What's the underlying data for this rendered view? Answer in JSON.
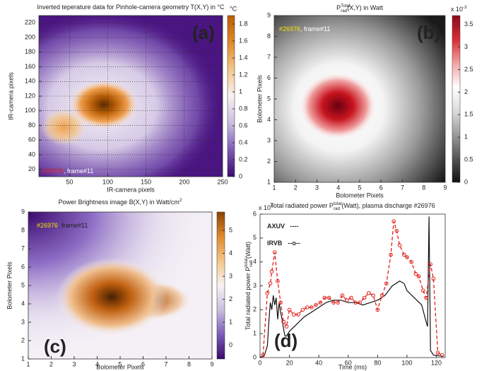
{
  "chart_data": [
    {
      "type": "heatmap",
      "title": [
        "Inverted teperature data for Pinhole-camera geometry T(X,Y) in °C"
      ],
      "x_label": "IR-camera pixels",
      "y_label": "IR-camera pixels",
      "xlim": [
        10,
        250
      ],
      "xticks": [
        50,
        100,
        150,
        200,
        250
      ],
      "ylim": [
        10,
        230
      ],
      "yticks": [
        20,
        40,
        60,
        80,
        100,
        120,
        140,
        160,
        180,
        200,
        220
      ],
      "grid": true,
      "colorbar_label": "°C",
      "cbar_lim": [
        0,
        1.9
      ],
      "cbar_ticks": [
        0,
        0.2,
        0.4,
        0.6,
        0.8,
        1,
        1.2,
        1.4,
        1.6,
        1.8
      ],
      "colormap": [
        "#3c0a6e",
        "#7c5cb8",
        "#c9bde0",
        "#f7f2f2",
        "#f4c68a",
        "#e08a2a",
        "#b95d06"
      ],
      "annotation": [
        "#26976",
        ", frame#11"
      ],
      "panel_label": "(a)"
    },
    {
      "type": "heatmap",
      "title": [
        "P",
        "Total",
        "rad",
        "(X,Y) in Watt"
      ],
      "x_label": "Bolometer Pixels",
      "y_label": "Bolometer Pixels",
      "xlim": [
        1,
        9
      ],
      "xticks": [
        1,
        2,
        3,
        4,
        5,
        6,
        7,
        8,
        9
      ],
      "ylim": [
        1,
        9
      ],
      "yticks": [
        1,
        2,
        3,
        4,
        5,
        6,
        7,
        8,
        9
      ],
      "grid": false,
      "cbar_multiplier": [
        "x 10",
        "-3"
      ],
      "cbar_lim": [
        0,
        3.7
      ],
      "cbar_ticks": [
        0,
        0.5,
        1,
        1.5,
        2,
        2.5,
        3,
        3.5
      ],
      "colormap": [
        "#111111",
        "#555555",
        "#9a9a9a",
        "#dcdcdc",
        "#ffffff",
        "#f2a3a3",
        "#d92b35",
        "#8c0a1c"
      ],
      "annotation": [
        "#26976",
        ", frame#11"
      ],
      "panel_label": "(b)"
    },
    {
      "type": "heatmap",
      "title": [
        "Power Brightness image B(X,Y) in Watt/cm",
        "2"
      ],
      "x_label": "Bolometer Pixels",
      "y_label": "Bolometer Pixels",
      "xlim": [
        1,
        9
      ],
      "xticks": [
        1,
        2,
        3,
        4,
        5,
        6,
        7,
        8,
        9
      ],
      "ylim": [
        1,
        9
      ],
      "yticks": [
        1,
        2,
        3,
        4,
        5,
        6,
        7,
        8,
        9
      ],
      "grid": false,
      "cbar_lim": [
        -0.6,
        5.8
      ],
      "cbar_ticks": [
        0,
        1,
        2,
        3,
        4,
        5
      ],
      "colormap": [
        "#3c0a6e",
        "#7c5cb8",
        "#c9bde0",
        "#f7f2f2",
        "#f4c68a",
        "#e08a2a",
        "#8a4203"
      ],
      "annotation": [
        "#26976",
        ", frame#11"
      ],
      "panel_label": "(c)"
    },
    {
      "type": "line",
      "title": [
        "Total radiated power P",
        "total",
        "rad",
        " (Watt), plasma discharge #26976"
      ],
      "x_label": "Time (ms)",
      "y_label": [
        "Total radiated power P",
        "total",
        "rad",
        " (Watt)"
      ],
      "y_multiplier": [
        "x 10",
        "4"
      ],
      "xlim": [
        0,
        126
      ],
      "xticks": [
        0,
        20,
        40,
        60,
        80,
        100,
        120
      ],
      "ylim": [
        0,
        6
      ],
      "yticks": [
        0,
        1,
        2,
        3,
        4,
        5,
        6
      ],
      "series": [
        {
          "name": "AXUV",
          "legend": "----",
          "color": "#111111",
          "x": [
            0,
            3,
            5,
            6,
            7,
            8,
            9,
            10,
            11,
            12,
            13,
            14,
            15,
            16,
            17,
            18,
            20,
            25,
            30,
            35,
            40,
            45,
            50,
            55,
            60,
            65,
            70,
            75,
            80,
            85,
            90,
            95,
            98,
            100,
            105,
            110,
            113,
            114,
            115,
            116,
            118,
            125
          ],
          "values": [
            0,
            0.1,
            0.5,
            1.5,
            2.3,
            2.0,
            2.6,
            2.2,
            2.5,
            1.6,
            2.3,
            1.9,
            1.6,
            1.2,
            0.9,
            0.9,
            1.1,
            1.4,
            1.7,
            1.9,
            2.1,
            2.3,
            2.4,
            2.4,
            2.3,
            2.3,
            2.2,
            2.3,
            2.4,
            2.6,
            3.0,
            3.2,
            3.1,
            2.8,
            2.5,
            2.2,
            1.5,
            1.3,
            5.9,
            0.3,
            0.1,
            0.05
          ]
        },
        {
          "name": "IRVB",
          "legend": "--o--",
          "color": "#e0201c",
          "x": [
            2,
            5,
            7,
            8,
            10,
            12,
            14,
            16,
            18,
            20,
            23,
            26,
            29,
            32,
            35,
            38,
            41,
            44,
            47,
            50,
            53,
            56,
            59,
            62,
            65,
            68,
            71,
            74,
            77,
            80,
            83,
            86,
            89,
            91,
            93,
            95,
            98,
            100,
            103,
            106,
            108,
            111,
            113,
            116,
            118,
            121,
            124
          ],
          "values": [
            0.1,
            2.7,
            3.1,
            3.6,
            4.4,
            3.2,
            2.3,
            1.5,
            1.3,
            2.0,
            1.8,
            1.8,
            2.0,
            2.1,
            2.1,
            2.2,
            2.3,
            2.5,
            2.5,
            2.3,
            2.3,
            2.6,
            2.4,
            2.5,
            2.3,
            2.3,
            2.5,
            2.7,
            2.6,
            2.0,
            2.6,
            3.1,
            4.3,
            5.7,
            5.3,
            4.7,
            4.3,
            4.2,
            4.0,
            3.5,
            3.4,
            2.8,
            2.5,
            3.9,
            3.3,
            0.2,
            0.1
          ]
        }
      ],
      "panel_label": "(d)"
    }
  ]
}
